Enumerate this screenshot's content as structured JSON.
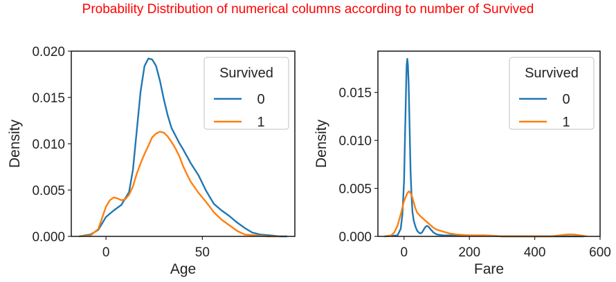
{
  "figure": {
    "title": "Probability Distribution of numerical columns according to number of Survived",
    "title_color": "#ff0000"
  },
  "colors": {
    "0": "#1f77b4",
    "1": "#ff7f0e"
  },
  "chart_data": [
    {
      "type": "line",
      "xlabel": "Age",
      "ylabel": "Density",
      "xlim": [
        -18,
        98
      ],
      "ylim": [
        0,
        0.02
      ],
      "xticks": [
        0,
        50
      ],
      "yticks": [
        "0.000",
        "0.005",
        "0.010",
        "0.015",
        "0.020"
      ],
      "legend": {
        "title": "Survived",
        "entries": [
          "0",
          "1"
        ],
        "placement": "top-right"
      },
      "series": [
        {
          "name": "0",
          "x": [
            -14,
            -8,
            -4,
            0,
            4,
            8,
            12,
            14,
            16,
            18,
            20,
            22,
            24,
            26,
            28,
            30,
            32,
            34,
            36,
            38,
            40,
            44,
            48,
            52,
            56,
            60,
            64,
            68,
            72,
            76,
            80,
            86,
            90,
            94
          ],
          "y": [
            0,
            0.0002,
            0.0007,
            0.0021,
            0.0028,
            0.0034,
            0.0048,
            0.0072,
            0.0115,
            0.0157,
            0.0184,
            0.0192,
            0.0191,
            0.0184,
            0.0168,
            0.0148,
            0.0131,
            0.0117,
            0.0109,
            0.0101,
            0.0094,
            0.0079,
            0.0066,
            0.0049,
            0.0035,
            0.0028,
            0.0022,
            0.0015,
            0.0009,
            0.0004,
            0.0002,
            0.0001,
            0,
            0
          ]
        },
        {
          "name": "1",
          "x": [
            -14,
            -8,
            -4,
            0,
            2,
            4,
            6,
            8,
            10,
            12,
            14,
            16,
            18,
            20,
            22,
            24,
            26,
            28,
            30,
            32,
            34,
            36,
            38,
            40,
            42,
            44,
            48,
            52,
            56,
            60,
            64,
            68,
            72,
            78,
            84,
            90
          ],
          "y": [
            0,
            0.0001,
            0.0008,
            0.0032,
            0.0039,
            0.0042,
            0.0041,
            0.0039,
            0.004,
            0.0045,
            0.0054,
            0.0068,
            0.0079,
            0.0089,
            0.0098,
            0.0107,
            0.0111,
            0.0113,
            0.0112,
            0.0108,
            0.0102,
            0.0095,
            0.0087,
            0.0076,
            0.0067,
            0.0059,
            0.0047,
            0.0037,
            0.0026,
            0.0018,
            0.0012,
            0.0006,
            0.0002,
            0.0001,
            0,
            0
          ]
        }
      ]
    },
    {
      "type": "line",
      "xlabel": "Fare",
      "ylabel": "Density",
      "xlim": [
        -80,
        600
      ],
      "ylim": [
        0,
        0.0193
      ],
      "xticks": [
        0,
        200,
        400,
        600
      ],
      "yticks": [
        "0.000",
        "0.005",
        "0.010",
        "0.015"
      ],
      "legend": {
        "title": "Survived",
        "entries": [
          "0",
          "1"
        ],
        "placement": "top-right"
      },
      "series": [
        {
          "name": "0",
          "x": [
            -60,
            -20,
            -10,
            -5,
            0,
            3,
            6,
            8,
            10,
            12,
            14,
            16,
            18,
            20,
            23,
            26,
            30,
            35,
            40,
            45,
            50,
            55,
            60,
            66,
            70,
            75,
            80,
            90,
            100,
            120,
            150,
            200,
            250,
            300,
            400,
            500,
            550
          ],
          "y": [
            0,
            0.0001,
            0.0008,
            0.0023,
            0.0058,
            0.0105,
            0.0152,
            0.0178,
            0.0185,
            0.0178,
            0.0159,
            0.013,
            0.0097,
            0.0068,
            0.0042,
            0.0025,
            0.0016,
            0.001,
            0.0006,
            0.0004,
            0.0003,
            0.0004,
            0.0007,
            0.001,
            0.0011,
            0.001,
            0.0008,
            0.0004,
            0.0002,
            0.0001,
            0.0001,
            0.0001,
            0.0001,
            0,
            0,
            0,
            0
          ]
        },
        {
          "name": "1",
          "x": [
            -60,
            -40,
            -30,
            -20,
            -10,
            0,
            10,
            15,
            20,
            25,
            30,
            35,
            40,
            50,
            60,
            70,
            80,
            90,
            100,
            110,
            120,
            140,
            160,
            200,
            250,
            300,
            400,
            450,
            500,
            520,
            540,
            560
          ],
          "y": [
            0,
            0.0001,
            0.0004,
            0.0011,
            0.0023,
            0.0037,
            0.0045,
            0.0047,
            0.0045,
            0.0041,
            0.0035,
            0.0029,
            0.0025,
            0.0021,
            0.0018,
            0.0015,
            0.0012,
            0.0009,
            0.0007,
            0.0006,
            0.0005,
            0.0003,
            0.0002,
            0.0001,
            0.0001,
            0,
            0,
            0,
            0.0002,
            0.0002,
            0.0001,
            0
          ]
        }
      ]
    }
  ]
}
